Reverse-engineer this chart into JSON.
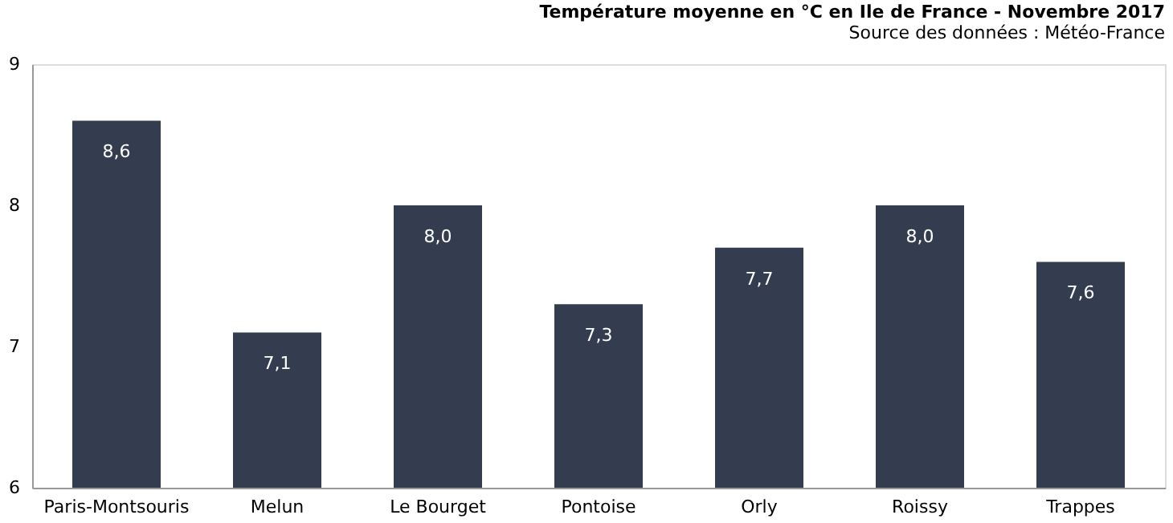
{
  "chart_data": {
    "type": "bar",
    "title": "Température moyenne en °C en Ile de France - Novembre 2017",
    "subtitle": "Source des données : Météo-France",
    "categories": [
      "Paris-Montsouris",
      "Melun",
      "Le Bourget",
      "Pontoise",
      "Orly",
      "Roissy",
      "Trappes"
    ],
    "values": [
      8.6,
      7.1,
      8.0,
      7.3,
      7.7,
      8.0,
      7.6
    ],
    "value_labels": [
      "8,6",
      "7,1",
      "8,0",
      "7,3",
      "7,7",
      "8,0",
      "7,6"
    ],
    "color": "#333d4f",
    "ylim": [
      6,
      9
    ],
    "yticks": [
      6,
      7,
      8,
      9
    ],
    "grid": false
  }
}
